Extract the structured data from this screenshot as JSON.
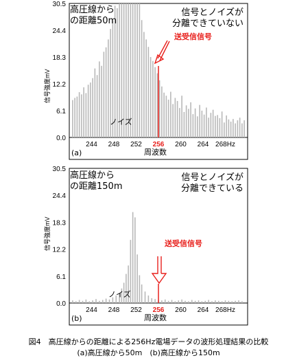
{
  "chart_data": [
    {
      "type": "bar",
      "panel_label": "(a)",
      "title_left_1": "高圧線から",
      "title_left_2": "の距離50m",
      "title_right_1": "信号とノイズが",
      "title_right_2": "分離できていない",
      "signal_label": "送受信信号",
      "noise_label": "ノイズ",
      "ylabel": "信号強度mV",
      "xlabel": "周波数",
      "ylim": [
        0,
        30.5
      ],
      "xlim": [
        240,
        272
      ],
      "yticks": [
        "30.5",
        "24.4",
        "18.3",
        "12.2",
        "6.1",
        "0.0"
      ],
      "xticks": [
        "244",
        "248",
        "252",
        "256",
        "260",
        "264",
        "268Hz"
      ],
      "highlight_tick": "256",
      "signal_x": 256,
      "x": [
        240.6,
        241.0,
        241.4,
        241.8,
        242.2,
        242.6,
        243.0,
        243.4,
        243.8,
        244.2,
        244.6,
        245.0,
        245.4,
        245.8,
        246.2,
        246.6,
        247.0,
        247.4,
        247.8,
        248.2,
        248.6,
        249.0,
        249.4,
        249.8,
        250.2,
        250.6,
        251.0,
        251.4,
        251.8,
        252.2,
        252.6,
        253.0,
        253.4,
        253.8,
        254.2,
        254.6,
        255.0,
        255.4,
        255.8,
        256.2,
        256.6,
        257.0,
        257.4,
        257.8,
        258.2,
        258.6,
        259.0,
        259.4,
        259.8,
        260.2,
        260.6,
        261.0,
        261.4,
        261.8,
        262.2,
        262.6,
        263.0,
        263.4,
        263.8,
        264.2,
        264.6,
        265.0,
        265.4,
        265.8,
        266.2,
        266.6,
        267.0,
        267.4,
        267.8,
        268.2,
        268.6,
        269.0,
        269.4,
        269.8,
        270.2,
        270.6,
        271.0,
        271.4
      ],
      "values": [
        8.5,
        9.0,
        9.3,
        10.3,
        9.8,
        11.4,
        10.1,
        12.0,
        12.5,
        13.5,
        15.7,
        14.2,
        17.3,
        16.3,
        19.5,
        20.5,
        22.3,
        24.7,
        26.6,
        30.0,
        29.4,
        30.5,
        30.5,
        30.5,
        30.5,
        30.5,
        30.5,
        30.5,
        30.5,
        30.5,
        30.5,
        26.7,
        24.0,
        22.3,
        20.6,
        18.3,
        17.4,
        16.0,
        14.6,
        13.0,
        11.6,
        10.2,
        9.5,
        8.6,
        10.4,
        7.6,
        9.0,
        8.3,
        6.7,
        9.5,
        5.8,
        7.3,
        6.5,
        8.0,
        5.3,
        6.6,
        4.8,
        7.4,
        6.1,
        5.2,
        6.8,
        4.5,
        5.6,
        6.3,
        4.9,
        5.1,
        4.4,
        5.9,
        3.4,
        5.0,
        4.1,
        3.6,
        4.2,
        3.2,
        3.9,
        4.5,
        3.2,
        3.9
      ]
    },
    {
      "type": "bar",
      "panel_label": "(b)",
      "title_left_1": "高圧線から",
      "title_left_2": "の距離150m",
      "title_right_1": "信号とノイズが",
      "title_right_2": "分離できている",
      "signal_label": "送受信信号",
      "noise_label": "ノイズ",
      "ylabel": "信号強度mV",
      "xlabel": "周波数",
      "ylim": [
        0,
        30.5
      ],
      "xlim": [
        240,
        272
      ],
      "yticks": [
        "30.5",
        "24.4",
        "18.3",
        "12.2",
        "6.1",
        "0.0"
      ],
      "xticks": [
        "244",
        "248",
        "252",
        "256",
        "260",
        "264",
        "268Hz"
      ],
      "highlight_tick": "256",
      "signal_x": 256,
      "x": [
        240.6,
        241.2,
        241.8,
        242.4,
        243.0,
        243.6,
        244.2,
        244.8,
        245.4,
        246.0,
        246.6,
        247.2,
        247.8,
        248.4,
        249.0,
        249.4,
        249.8,
        250.2,
        250.6,
        251.0,
        251.4,
        251.8,
        252.2,
        252.6,
        253.0,
        253.6,
        254.2,
        254.8,
        255.4,
        256.0,
        256.6,
        257.2,
        257.8,
        258.4,
        259.0,
        259.6,
        260.2,
        260.8,
        261.4,
        262.0,
        262.6,
        263.2,
        263.8,
        264.4,
        265.0,
        265.6,
        266.2,
        266.8,
        267.4,
        268.0,
        268.6,
        269.2,
        269.8,
        270.4,
        271.0
      ],
      "values": [
        0.6,
        0.4,
        0.7,
        0.5,
        0.8,
        0.4,
        0.6,
        0.9,
        0.5,
        0.7,
        1.0,
        0.8,
        1.3,
        1.7,
        2.3,
        3.3,
        4.6,
        6.6,
        8.5,
        14.3,
        20.6,
        19.4,
        11.0,
        6.3,
        4.2,
        2.6,
        1.7,
        1.1,
        0.9,
        0.7,
        0.6,
        0.8,
        0.5,
        0.7,
        0.4,
        0.6,
        0.8,
        0.5,
        0.4,
        0.7,
        0.5,
        0.6,
        0.4,
        0.5,
        0.7,
        0.4,
        0.6,
        0.5,
        0.4,
        0.6,
        0.5,
        0.4,
        0.5,
        0.6,
        0.4
      ]
    }
  ],
  "caption": {
    "line1": "図4　高圧線からの距離による256Hz電場データの波形処理結果の比較",
    "line2": "(a)高圧線から50m　(b)高圧線から150m"
  }
}
